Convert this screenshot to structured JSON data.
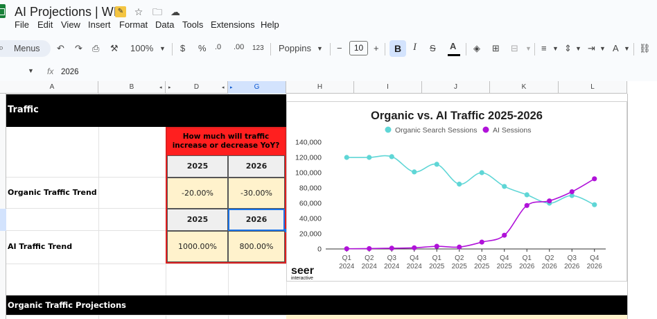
{
  "app": {
    "title": "AI Projections | WIP",
    "icons": [
      "sheets-logo",
      "tag-icon",
      "star-icon",
      "move-to-folder-icon",
      "cloud-status-icon"
    ]
  },
  "menu": [
    "File",
    "Edit",
    "View",
    "Insert",
    "Format",
    "Data",
    "Tools",
    "Extensions",
    "Help"
  ],
  "toolbar": {
    "search_label": "Menus",
    "zoom": "100%",
    "currency": "$",
    "percent": "%",
    "decrease_decimal": ".0",
    "increase_decimal": ".00",
    "number_format": "123",
    "font": "Poppins",
    "font_size": "10",
    "minus": "−",
    "plus": "+",
    "bold": "B",
    "italic": "I",
    "text_color_label": "A"
  },
  "formula_bar": {
    "fx": "fx",
    "value": "2026"
  },
  "columns": [
    "A",
    "B",
    "D",
    "G",
    "H",
    "I",
    "J",
    "K",
    "L"
  ],
  "sheet": {
    "section1_title": "Traffic",
    "question": "How much will traffic increase or decrease YoY?",
    "years": [
      "2025",
      "2026"
    ],
    "organic_label": "Organic Traffic Trend",
    "organic_values": [
      "-20.00%",
      "-30.00%"
    ],
    "ai_label": "AI Traffic Trend",
    "ai_values": [
      "1000.00%",
      "800.00%"
    ],
    "section2_title": "Organic Traffic Projections"
  },
  "chart_data": {
    "type": "line",
    "title": "Organic vs. AI Traffic 2025-2026",
    "categories": [
      "Q1 2024",
      "Q2 2024",
      "Q3 2024",
      "Q4 2024",
      "Q1 2025",
      "Q2 2025",
      "Q3 2025",
      "Q4 2025",
      "Q1 2026",
      "Q2 2026",
      "Q3 2026",
      "Q4 2026"
    ],
    "category_lines": [
      [
        "Q1",
        "2024"
      ],
      [
        "Q2",
        "2024"
      ],
      [
        "Q3",
        "2024"
      ],
      [
        "Q4",
        "2024"
      ],
      [
        "Q1",
        "2025"
      ],
      [
        "Q2",
        "2025"
      ],
      [
        "Q3",
        "2025"
      ],
      [
        "Q4",
        "2025"
      ],
      [
        "Q1",
        "2026"
      ],
      [
        "Q2",
        "2026"
      ],
      [
        "Q3",
        "2026"
      ],
      [
        "Q4",
        "2026"
      ]
    ],
    "series": [
      {
        "name": "Organic Search Sessions",
        "color": "#5fd6d6",
        "values": [
          120000,
          120000,
          121000,
          101000,
          111000,
          85000,
          100000,
          82000,
          71000,
          60000,
          70000,
          58000
        ]
      },
      {
        "name": "AI Sessions",
        "color": "#b012d9",
        "values": [
          300,
          500,
          1000,
          1500,
          3500,
          2500,
          9000,
          18000,
          57000,
          63000,
          75000,
          92000
        ]
      }
    ],
    "ylim": [
      0,
      140000
    ],
    "y_ticks": [
      "0",
      "20,000",
      "40,000",
      "60,000",
      "80,000",
      "100,000",
      "120,000",
      "140,000"
    ],
    "legend": "top",
    "grid": false
  },
  "chart_logo": {
    "name": "seer",
    "sub": "interactive"
  }
}
